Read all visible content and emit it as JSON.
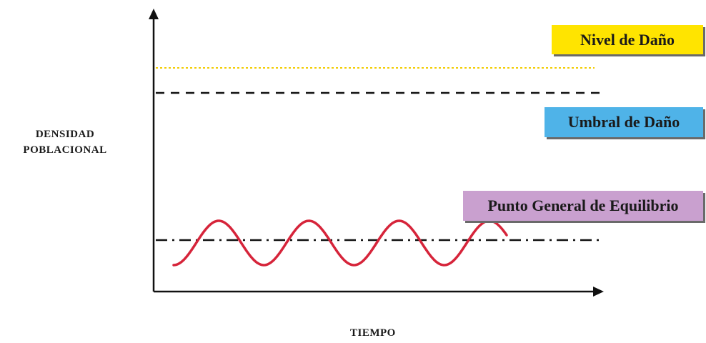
{
  "labels": {
    "nivel": "Nivel de Daño",
    "umbral": "Umbral de Daño",
    "equilibrio": "Punto General de Equilibrio"
  },
  "axes": {
    "y_line1": "DENSIDAD",
    "y_line2": "POBLACIONAL",
    "x": "TIEMPO"
  },
  "colors": {
    "nivel_box": "#ffe400",
    "umbral_box": "#4fb3e8",
    "equilibrio_box": "#c9a0cf",
    "nivel_line": "#f2cc00",
    "umbral_line": "#111111",
    "equilibrio_line": "#111111",
    "wave": "#d6243a",
    "axis": "#111111"
  },
  "wave": {
    "cycles": 4
  }
}
